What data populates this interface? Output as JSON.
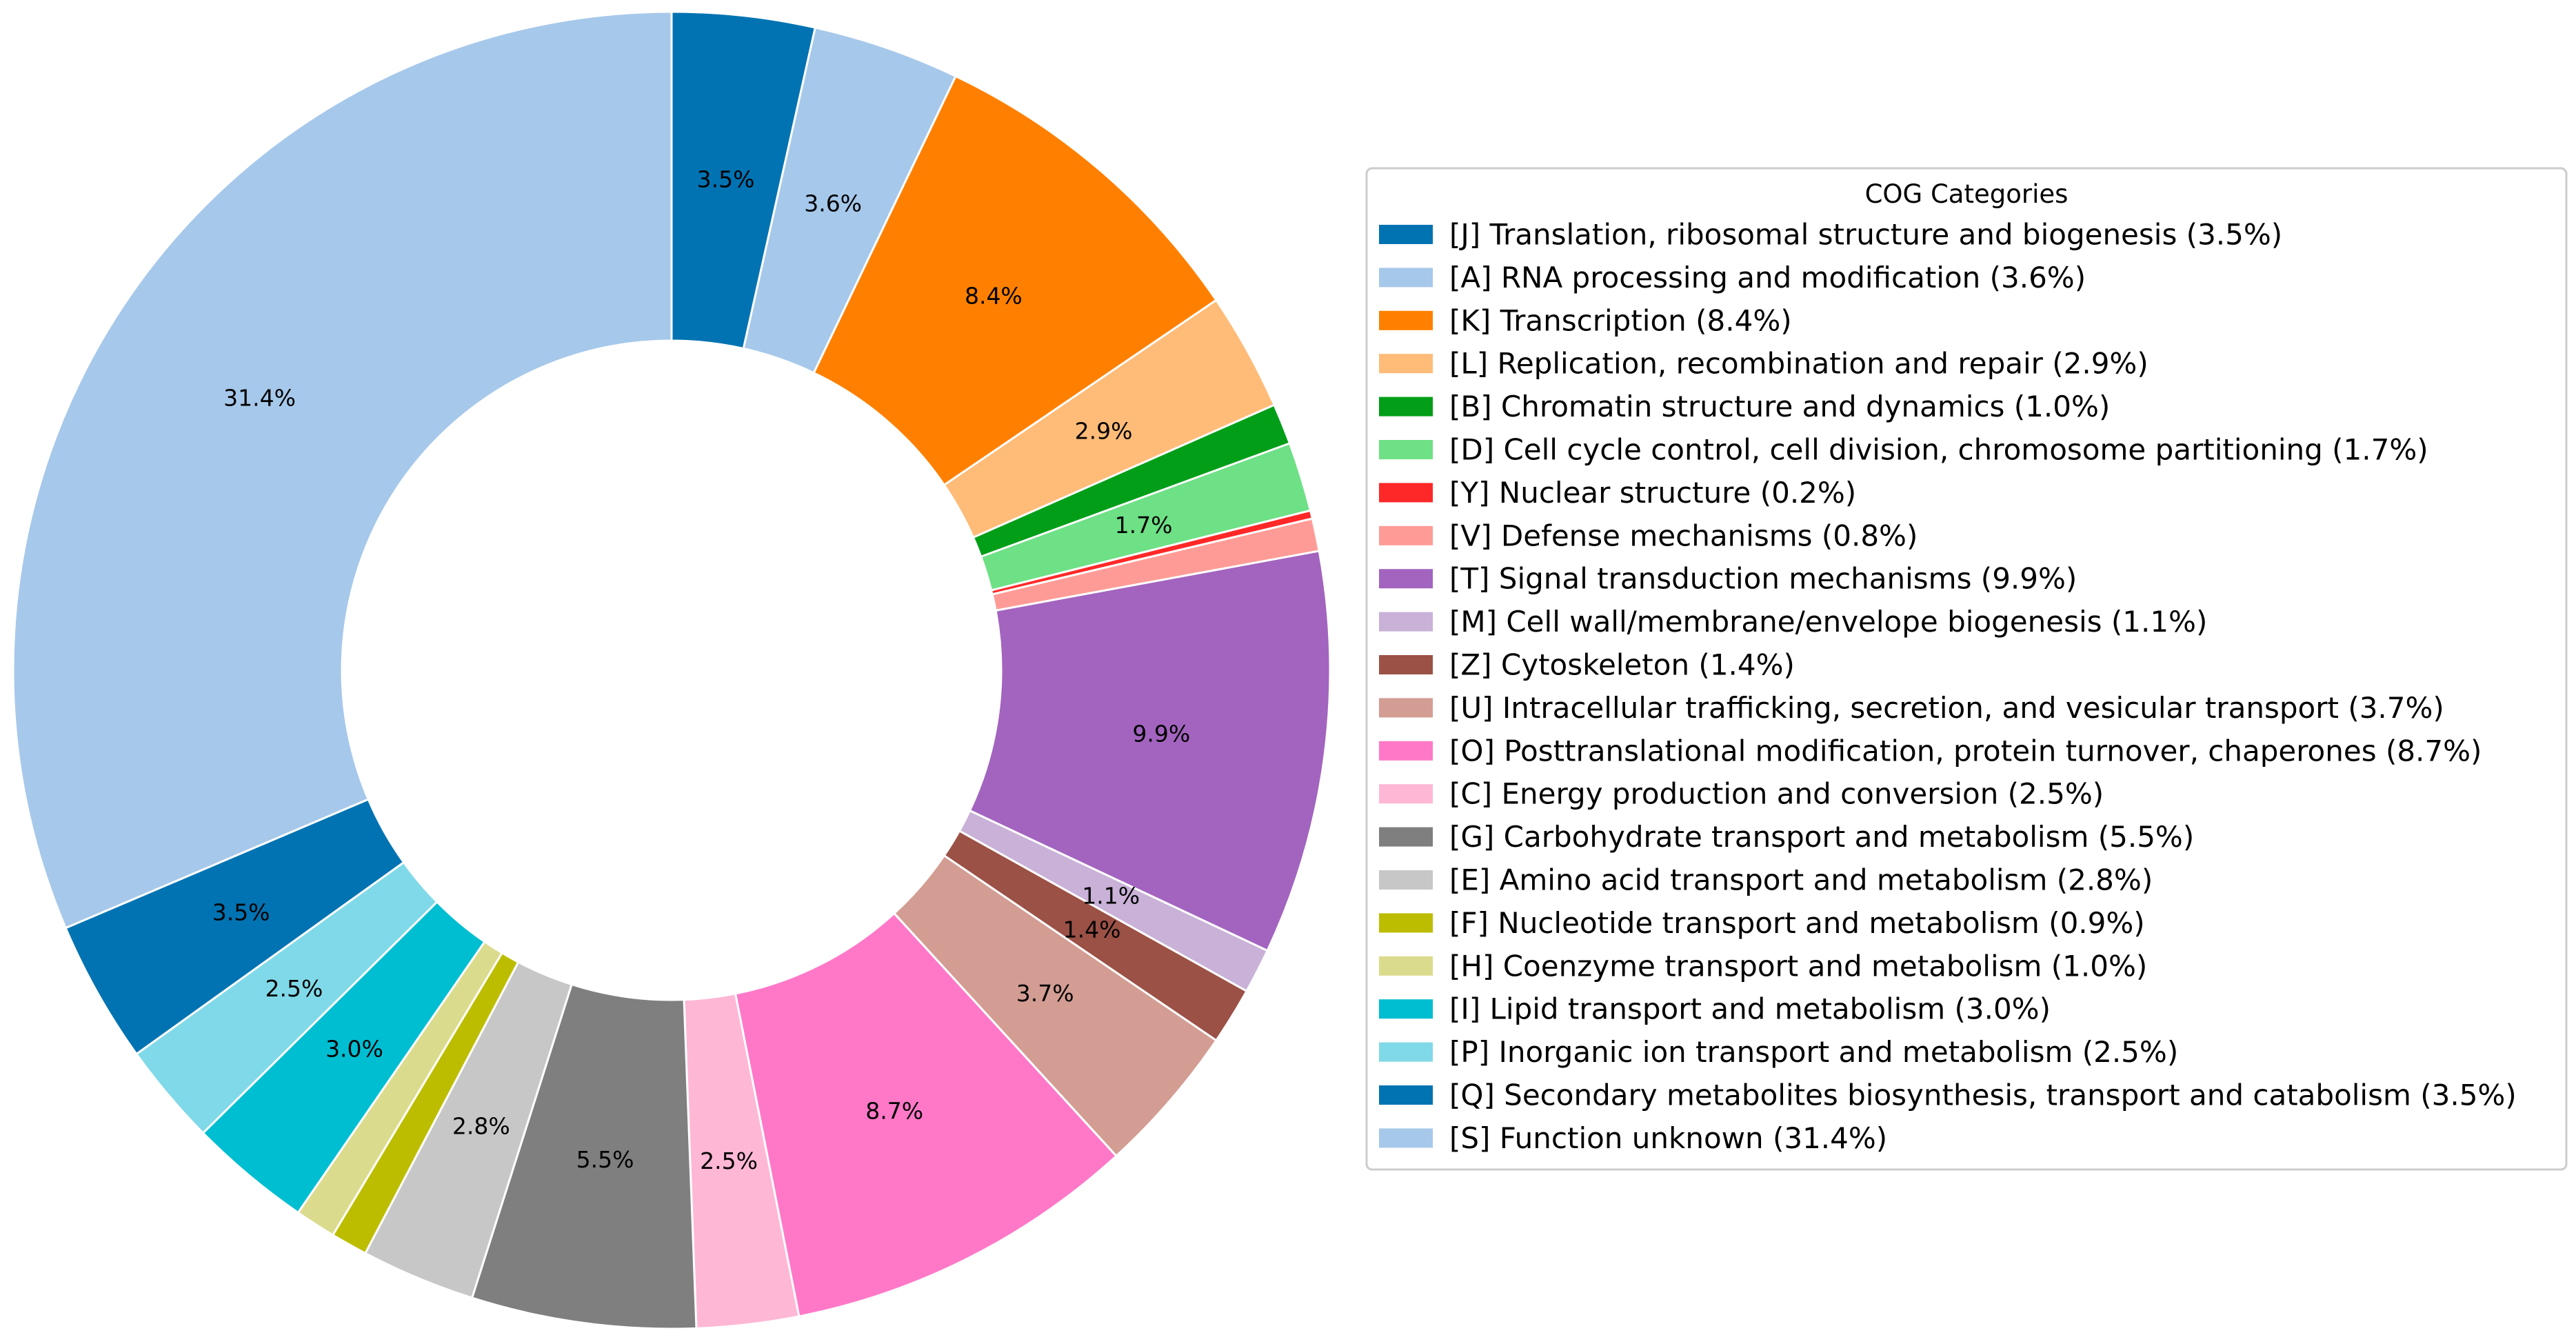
{
  "chart_data": {
    "type": "pie",
    "variant": "donut",
    "start": "12 o'clock, clockwise",
    "legend": {
      "title": "COG Categories",
      "placement": "right"
    },
    "slices": [
      {
        "code": "J",
        "label": "[J] Translation, ribosomal structure and biogenesis (3.5%)",
        "value": 3.5,
        "pct_text": "3.5%",
        "color": "#0173b2"
      },
      {
        "code": "A",
        "label": "[A] RNA processing and modification (3.6%)",
        "value": 3.6,
        "pct_text": "3.6%",
        "color": "#a6c8ea"
      },
      {
        "code": "K",
        "label": "[K] Transcription (8.4%)",
        "value": 8.4,
        "pct_text": "8.4%",
        "color": "#ff8000"
      },
      {
        "code": "L",
        "label": "[L] Replication, recombination and repair (2.9%)",
        "value": 2.9,
        "pct_text": "2.9%",
        "color": "#ffbb78"
      },
      {
        "code": "B",
        "label": "[B] Chromatin structure and dynamics (1.0%)",
        "value": 1.0,
        "pct_text": "",
        "color": "#029e18"
      },
      {
        "code": "D",
        "label": "[D] Cell cycle control, cell division, chromosome partitioning (1.7%)",
        "value": 1.7,
        "pct_text": "1.7%",
        "color": "#6ee085"
      },
      {
        "code": "Y",
        "label": "[Y] Nuclear structure (0.2%)",
        "value": 0.2,
        "pct_text": "",
        "color": "#ff2828"
      },
      {
        "code": "V",
        "label": "[V] Defense mechanisms (0.8%)",
        "value": 0.8,
        "pct_text": "",
        "color": "#ff9b96"
      },
      {
        "code": "T",
        "label": "[T] Signal transduction mechanisms (9.9%)",
        "value": 9.9,
        "pct_text": "9.9%",
        "color": "#a264bf"
      },
      {
        "code": "M",
        "label": "[M] Cell wall/membrane/envelope biogenesis (1.1%)",
        "value": 1.1,
        "pct_text": "1.1%",
        "color": "#c9b1d8"
      },
      {
        "code": "Z",
        "label": "[Z] Cytoskeleton (1.4%)",
        "value": 1.4,
        "pct_text": "1.4%",
        "color": "#9b5146"
      },
      {
        "code": "U",
        "label": "[U] Intracellular trafficking, secretion, and vesicular transport (3.7%)",
        "value": 3.7,
        "pct_text": "3.7%",
        "color": "#d39d93"
      },
      {
        "code": "O",
        "label": "[O] Posttranslational modification, protein turnover, chaperones (8.7%)",
        "value": 8.7,
        "pct_text": "8.7%",
        "color": "#ff78c8"
      },
      {
        "code": "C",
        "label": "[C] Energy production and conversion (2.5%)",
        "value": 2.5,
        "pct_text": "2.5%",
        "color": "#ffb7d6"
      },
      {
        "code": "G",
        "label": "[G] Carbohydrate transport and metabolism (5.5%)",
        "value": 5.5,
        "pct_text": "5.5%",
        "color": "#7f7f7f"
      },
      {
        "code": "E",
        "label": "[E] Amino acid transport and metabolism (2.8%)",
        "value": 2.8,
        "pct_text": "2.8%",
        "color": "#c7c7c7"
      },
      {
        "code": "F",
        "label": "[F] Nucleotide transport and metabolism (0.9%)",
        "value": 0.9,
        "pct_text": "",
        "color": "#bdbd00"
      },
      {
        "code": "H",
        "label": "[H] Coenzyme transport and metabolism (1.0%)",
        "value": 1.0,
        "pct_text": "",
        "color": "#dbdb8d"
      },
      {
        "code": "I",
        "label": "[I] Lipid transport and metabolism (3.0%)",
        "value": 3.0,
        "pct_text": "3.0%",
        "color": "#00bed2"
      },
      {
        "code": "P",
        "label": "[P] Inorganic ion transport and metabolism (2.5%)",
        "value": 2.5,
        "pct_text": "2.5%",
        "color": "#80d9e8"
      },
      {
        "code": "Q",
        "label": "[Q] Secondary metabolites biosynthesis, transport and catabolism (3.5%)",
        "value": 3.5,
        "pct_text": "3.5%",
        "color": "#0173b2"
      },
      {
        "code": "S",
        "label": "[S] Function unknown (31.4%)",
        "value": 31.4,
        "pct_text": "31.4%",
        "color": "#a6c8ea"
      }
    ]
  }
}
